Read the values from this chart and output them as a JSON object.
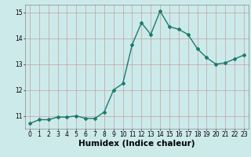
{
  "x": [
    0,
    1,
    2,
    3,
    4,
    5,
    6,
    7,
    8,
    9,
    10,
    11,
    12,
    13,
    14,
    15,
    16,
    17,
    18,
    19,
    20,
    21,
    22,
    23
  ],
  "y": [
    10.7,
    10.85,
    10.85,
    10.95,
    10.95,
    11.0,
    10.9,
    10.9,
    11.15,
    12.0,
    12.25,
    13.75,
    14.6,
    14.15,
    15.05,
    14.45,
    14.35,
    14.15,
    13.6,
    13.25,
    13.0,
    13.05,
    13.2,
    13.35
  ],
  "line_color": "#1a7a6e",
  "marker": "D",
  "markersize": 2.0,
  "linewidth": 1.0,
  "xlabel": "Humidex (Indice chaleur)",
  "ylim": [
    10.5,
    15.3
  ],
  "xlim": [
    -0.5,
    23.5
  ],
  "yticks": [
    11,
    12,
    13,
    14,
    15
  ],
  "xticks": [
    0,
    1,
    2,
    3,
    4,
    5,
    6,
    7,
    8,
    9,
    10,
    11,
    12,
    13,
    14,
    15,
    16,
    17,
    18,
    19,
    20,
    21,
    22,
    23
  ],
  "bg_color": "#cdeaea",
  "grid_color": "#c0a0a0",
  "tick_fontsize": 5.5,
  "xlabel_fontsize": 7.5
}
